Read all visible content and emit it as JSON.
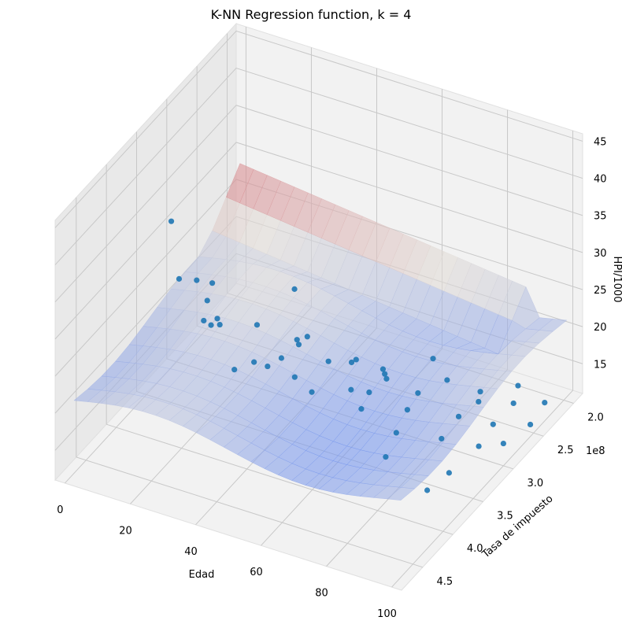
{
  "chart_data": {
    "type": "scatter",
    "projection": "3d",
    "title": "K-NN Regression function, k = 4",
    "xlabel": "Edad",
    "ylabel": "Tasa de impuesto",
    "zlabel": "HPI/1000",
    "x_ticks": [
      "0",
      "20",
      "40",
      "60",
      "80",
      "100"
    ],
    "y_ticks": [
      "2.0",
      "2.5",
      "3.0",
      "3.5",
      "4.0",
      "4.5"
    ],
    "y_offset_label": "1e8",
    "z_ticks": [
      "15",
      "20",
      "25",
      "30",
      "35",
      "40",
      "45"
    ],
    "xlim": [
      -3,
      103
    ],
    "ylim": [
      1.85,
      4.85
    ],
    "zlim": [
      11,
      46
    ],
    "grid": true,
    "colors": {
      "points": "#1f77b4",
      "surface_low": "#6b8ff0",
      "surface_mid": "#dcdcdc",
      "surface_high": "#d04a58",
      "pane": "#f0f0f0",
      "grid": "#c8c8c8"
    },
    "surface": {
      "description_colormap": "coolwarm",
      "level_low": 21,
      "level_high": 23,
      "ridge_x_range": [
        0,
        90
      ],
      "ridge_y_range": [
        1.9,
        2.45
      ]
    },
    "points": [
      {
        "x": 2,
        "y": 2.6,
        "z": 16
      },
      {
        "x": 5,
        "y": 2.7,
        "z": 14
      },
      {
        "x": 8,
        "y": 3.1,
        "z": 24
      },
      {
        "x": 10,
        "y": 3.5,
        "z": 28
      },
      {
        "x": 12,
        "y": 3.2,
        "z": 20
      },
      {
        "x": 15,
        "y": 3.9,
        "z": 40
      },
      {
        "x": 18,
        "y": 3.3,
        "z": 22
      },
      {
        "x": 20,
        "y": 2.8,
        "z": 12
      },
      {
        "x": 22,
        "y": 3.6,
        "z": 30
      },
      {
        "x": 25,
        "y": 2.4,
        "z": 19
      },
      {
        "x": 28,
        "y": 3.8,
        "z": 27
      },
      {
        "x": 30,
        "y": 2.6,
        "z": 14
      },
      {
        "x": 32,
        "y": 3.4,
        "z": 24
      },
      {
        "x": 35,
        "y": 2.9,
        "z": 18
      },
      {
        "x": 38,
        "y": 4.1,
        "z": 25
      },
      {
        "x": 40,
        "y": 3.0,
        "z": 20
      },
      {
        "x": 42,
        "y": 2.3,
        "z": 10
      },
      {
        "x": 45,
        "y": 3.7,
        "z": 24
      },
      {
        "x": 48,
        "y": 2.7,
        "z": 15
      },
      {
        "x": 50,
        "y": 4.2,
        "z": 28
      },
      {
        "x": 52,
        "y": 3.3,
        "z": 21
      },
      {
        "x": 55,
        "y": 2.5,
        "z": 12
      },
      {
        "x": 58,
        "y": 3.9,
        "z": 23
      },
      {
        "x": 60,
        "y": 2.8,
        "z": 16
      },
      {
        "x": 62,
        "y": 4.4,
        "z": 30
      },
      {
        "x": 65,
        "y": 3.1,
        "z": 20
      },
      {
        "x": 68,
        "y": 2.2,
        "z": 8
      },
      {
        "x": 70,
        "y": 3.6,
        "z": 22
      },
      {
        "x": 72,
        "y": 2.9,
        "z": 16
      },
      {
        "x": 75,
        "y": 4.0,
        "z": 24
      },
      {
        "x": 78,
        "y": 3.4,
        "z": 19
      },
      {
        "x": 80,
        "y": 2.3,
        "z": 12
      },
      {
        "x": 82,
        "y": 3.8,
        "z": 20
      },
      {
        "x": 85,
        "y": 2.6,
        "z": 14
      },
      {
        "x": 88,
        "y": 4.3,
        "z": 22
      },
      {
        "x": 90,
        "y": 3.2,
        "z": 18
      },
      {
        "x": 92,
        "y": 2.4,
        "z": 13
      },
      {
        "x": 94,
        "y": 3.7,
        "z": 20
      },
      {
        "x": 95,
        "y": 2.9,
        "z": 15
      },
      {
        "x": 97,
        "y": 4.1,
        "z": 17
      },
      {
        "x": 98,
        "y": 3.3,
        "z": 16
      },
      {
        "x": 99,
        "y": 2.5,
        "z": 12
      },
      {
        "x": 100,
        "y": 3.9,
        "z": 18
      },
      {
        "x": 100,
        "y": 3.0,
        "z": 14
      },
      {
        "x": 96,
        "y": 2.1,
        "z": 10
      },
      {
        "x": 86,
        "y": 2.0,
        "z": 6
      },
      {
        "x": 60,
        "y": 2.0,
        "z": 9
      },
      {
        "x": 70,
        "y": 3.9,
        "z": 25
      }
    ]
  }
}
